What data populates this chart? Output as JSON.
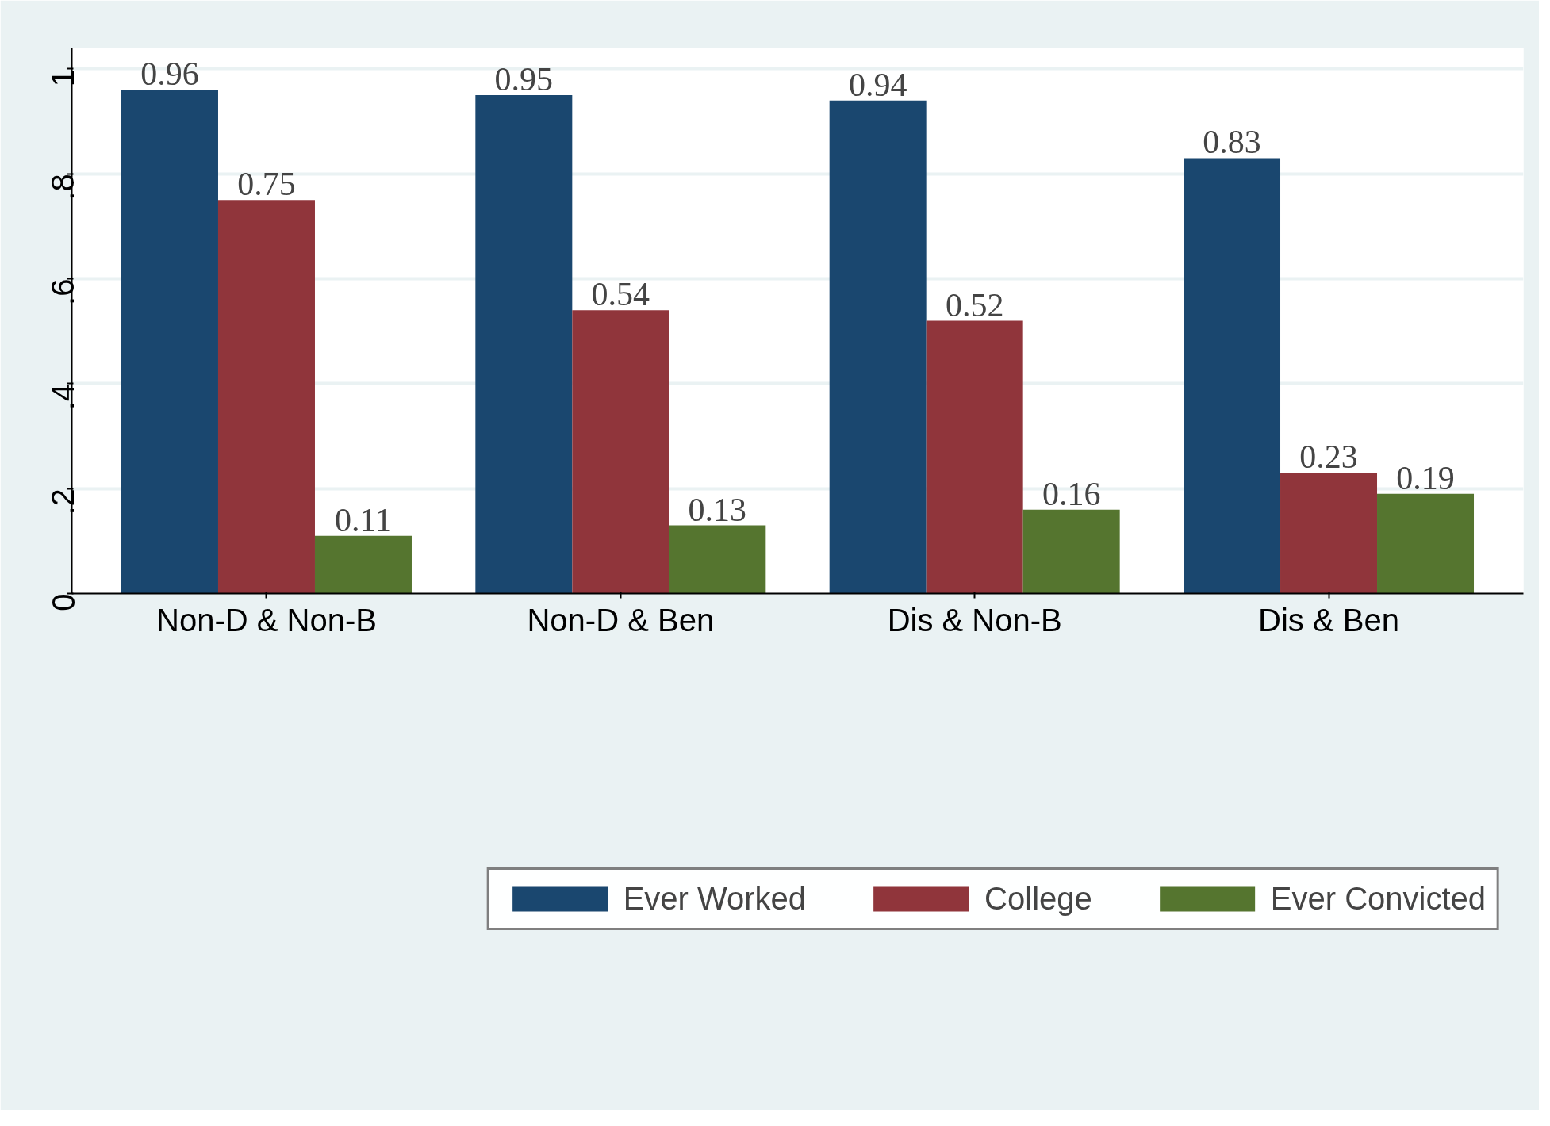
{
  "chart_data": {
    "type": "bar",
    "categories": [
      "Non-D & Non-B",
      "Non-D & Ben",
      "Dis & Non-B",
      "Dis & Ben"
    ],
    "series": [
      {
        "name": "Ever Worked",
        "color": "#1a476f",
        "values": [
          0.96,
          0.95,
          0.94,
          0.83
        ]
      },
      {
        "name": "College",
        "color": "#90353b",
        "values": [
          0.75,
          0.54,
          0.52,
          0.23
        ]
      },
      {
        "name": "Ever Convicted",
        "color": "#55752f",
        "values": [
          0.11,
          0.13,
          0.16,
          0.19
        ]
      }
    ],
    "ylim": [
      0,
      1.04
    ],
    "yticks": [
      {
        "value": 0,
        "label": "0"
      },
      {
        "value": 0.2,
        "label": ".2"
      },
      {
        "value": 0.4,
        "label": ".4"
      },
      {
        "value": 0.6,
        "label": ".6"
      },
      {
        "value": 0.8,
        "label": ".8"
      },
      {
        "value": 1,
        "label": "1"
      }
    ],
    "grid": "y",
    "legend": "bottom",
    "data_labels": true
  }
}
